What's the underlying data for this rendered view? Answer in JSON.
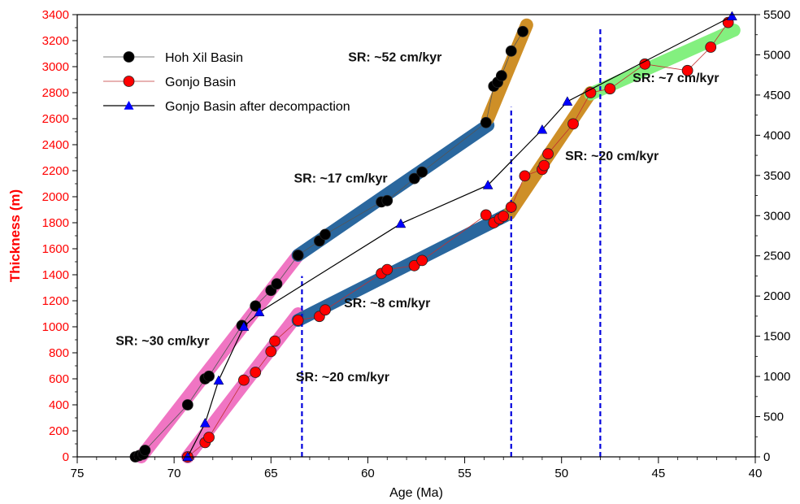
{
  "chart_data": {
    "type": "scatter",
    "xlabel": "Age (Ma)",
    "ylabel": "Thickness (m)",
    "x_reversed": true,
    "xlim": [
      75,
      40
    ],
    "ylim": [
      0,
      3400
    ],
    "y2lim": [
      0,
      5500
    ],
    "x_ticks": [
      75,
      70,
      65,
      60,
      55,
      50,
      45,
      40
    ],
    "y_ticks": [
      0,
      200,
      400,
      600,
      800,
      1000,
      1200,
      1400,
      1600,
      1800,
      2000,
      2200,
      2400,
      2600,
      2800,
      3000,
      3200,
      3400
    ],
    "y2_ticks": [
      0,
      500,
      1000,
      1500,
      2000,
      2500,
      3000,
      3500,
      4000,
      4500,
      5000,
      5500
    ],
    "y_tick_color": "#ff0000",
    "legend_position": "top-left",
    "series": [
      {
        "name": "Hoh Xil Basin",
        "color": "#000000",
        "marker": "circle",
        "axis": "left",
        "points": [
          [
            72.0,
            0
          ],
          [
            71.8,
            10
          ],
          [
            71.6,
            20
          ],
          [
            71.5,
            50
          ],
          [
            69.3,
            400
          ],
          [
            68.4,
            600
          ],
          [
            68.2,
            620
          ],
          [
            66.5,
            1010
          ],
          [
            65.8,
            1160
          ],
          [
            65.0,
            1280
          ],
          [
            64.7,
            1330
          ],
          [
            63.6,
            1550
          ],
          [
            62.5,
            1660
          ],
          [
            62.2,
            1710
          ],
          [
            59.3,
            1960
          ],
          [
            59.0,
            1970
          ],
          [
            57.6,
            2140
          ],
          [
            57.2,
            2190
          ],
          [
            53.9,
            2570
          ],
          [
            53.5,
            2850
          ],
          [
            53.3,
            2880
          ],
          [
            53.1,
            2930
          ],
          [
            52.6,
            3120
          ],
          [
            52.0,
            3270
          ]
        ]
      },
      {
        "name": "Gonjo Basin",
        "color": "#ff0000",
        "marker": "circle",
        "axis": "left",
        "points": [
          [
            69.3,
            0
          ],
          [
            68.4,
            110
          ],
          [
            68.2,
            150
          ],
          [
            66.4,
            590
          ],
          [
            65.8,
            650
          ],
          [
            65.0,
            810
          ],
          [
            64.8,
            890
          ],
          [
            63.6,
            1050
          ],
          [
            62.5,
            1080
          ],
          [
            62.2,
            1130
          ],
          [
            59.3,
            1410
          ],
          [
            59.0,
            1440
          ],
          [
            57.6,
            1470
          ],
          [
            57.2,
            1510
          ],
          [
            53.9,
            1860
          ],
          [
            53.5,
            1800
          ],
          [
            53.2,
            1830
          ],
          [
            53.0,
            1850
          ],
          [
            52.6,
            1920
          ],
          [
            51.9,
            2160
          ],
          [
            51.0,
            2210
          ],
          [
            50.9,
            2240
          ],
          [
            50.7,
            2330
          ],
          [
            49.4,
            2560
          ],
          [
            48.5,
            2800
          ],
          [
            47.5,
            2830
          ],
          [
            45.7,
            3020
          ],
          [
            43.5,
            2970
          ],
          [
            42.3,
            3150
          ],
          [
            41.4,
            3340
          ]
        ]
      },
      {
        "name": "Gonjo Basin after decompaction",
        "color": "#0000ff",
        "marker": "triangle",
        "axis": "right",
        "points": [
          [
            69.3,
            0
          ],
          [
            68.4,
            420
          ],
          [
            67.7,
            950
          ],
          [
            66.4,
            1620
          ],
          [
            65.6,
            1800
          ],
          [
            58.3,
            2900
          ],
          [
            53.8,
            3380
          ],
          [
            51.0,
            4070
          ],
          [
            49.7,
            4420
          ],
          [
            41.2,
            5480
          ]
        ]
      }
    ],
    "sr_bands": [
      {
        "color": "#f06ec0",
        "axis": "left",
        "points": [
          [
            71.7,
            0
          ],
          [
            63.6,
            1550
          ]
        ]
      },
      {
        "color": "#f06ec0",
        "axis": "left",
        "points": [
          [
            69.3,
            0
          ],
          [
            63.6,
            1100
          ]
        ]
      },
      {
        "color": "#1f5f99",
        "axis": "left",
        "points": [
          [
            63.6,
            1550
          ],
          [
            53.8,
            2550
          ]
        ]
      },
      {
        "color": "#1f5f99",
        "axis": "left",
        "points": [
          [
            63.6,
            1050
          ],
          [
            52.7,
            1870
          ]
        ]
      },
      {
        "color": "#cc8a1c",
        "axis": "left",
        "points": [
          [
            53.8,
            2600
          ],
          [
            51.8,
            3320
          ]
        ]
      },
      {
        "color": "#cc8a1c",
        "axis": "left",
        "points": [
          [
            52.7,
            1870
          ],
          [
            48.5,
            2800
          ]
        ]
      },
      {
        "color": "#7df079",
        "axis": "left",
        "points": [
          [
            48.5,
            2790
          ],
          [
            41.1,
            3280
          ]
        ]
      }
    ],
    "vlines": [
      63.4,
      52.6,
      48.0
    ],
    "vline_color": "#0000dd",
    "annotations": [
      {
        "text": "SR: ~52 cm/kyr",
        "x": 58.6,
        "y": 3040
      },
      {
        "text": "SR: ~17 cm/kyr",
        "x": 61.4,
        "y": 2110
      },
      {
        "text": "SR: ~20 cm/kyr",
        "x": 47.4,
        "y": 2280
      },
      {
        "text": "SR: ~7 cm/kyr",
        "x": 44.1,
        "y": 2880
      },
      {
        "text": "SR: ~8 cm/kyr",
        "x": 59.0,
        "y": 1150
      },
      {
        "text": "SR: ~30 cm/kyr",
        "x": 70.6,
        "y": 860
      },
      {
        "text": "SR: ~20 cm/kyr",
        "x": 61.3,
        "y": 580
      }
    ]
  }
}
